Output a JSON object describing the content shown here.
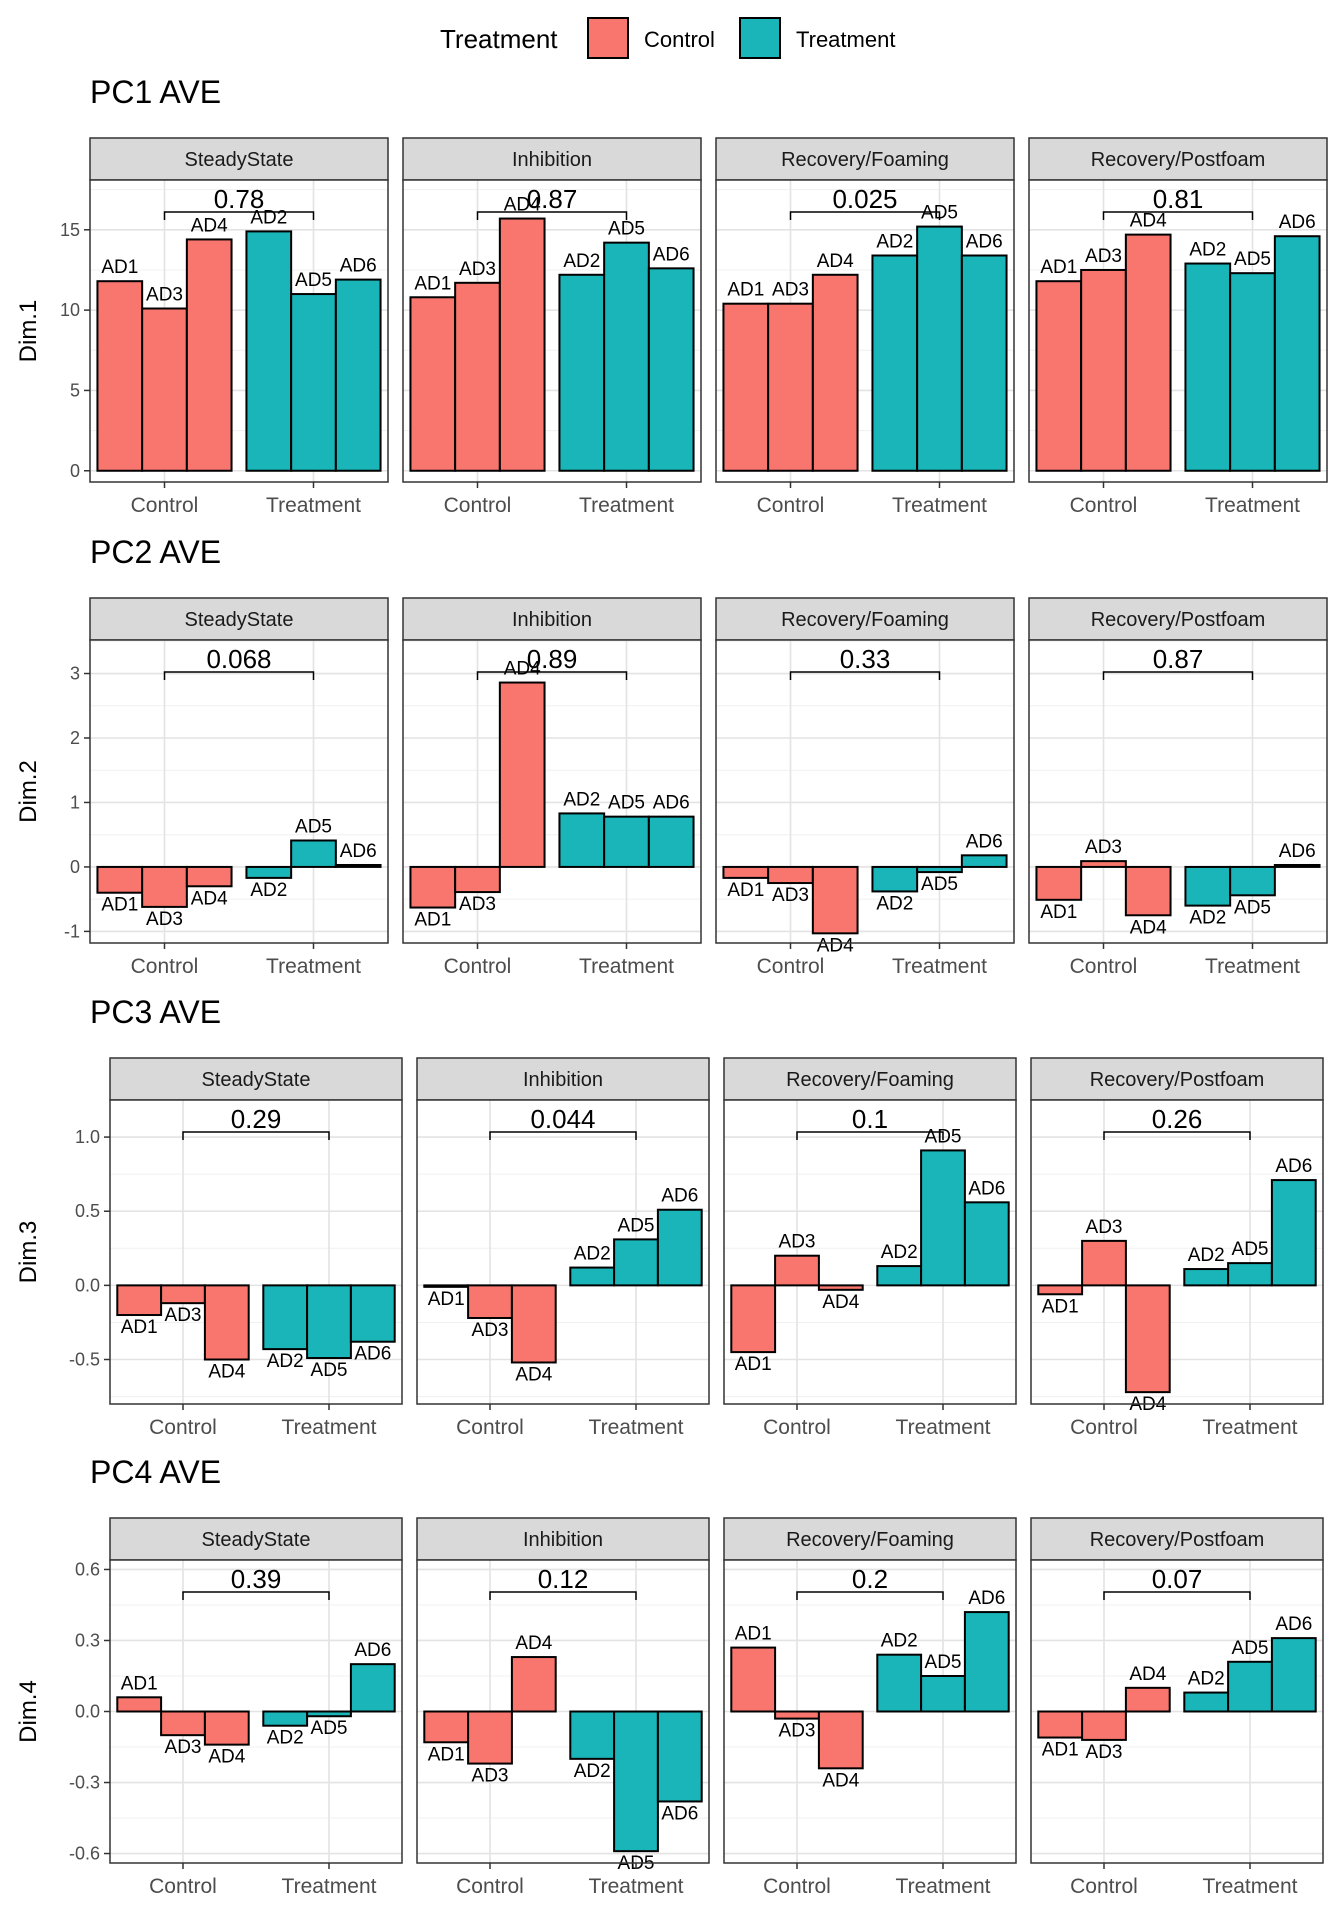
{
  "legend": {
    "title": "Treatment",
    "items": [
      {
        "label": "Control",
        "color": "#F8766D"
      },
      {
        "label": "Treatment",
        "color": "#19B5B8"
      }
    ]
  },
  "panels_header": [
    "SteadyState",
    "Inhibition",
    "Recovery/Foaming",
    "Recovery/Postfoam"
  ],
  "x_groups": [
    "Control",
    "Treatment"
  ],
  "bar_labels": [
    "AD1",
    "AD3",
    "AD4",
    "AD2",
    "AD5",
    "AD6"
  ],
  "chart_data": [
    {
      "type": "bar",
      "title": "PC1 AVE",
      "ylabel": "Dim.1",
      "yticks": [
        0,
        5,
        10,
        15
      ],
      "yticklabels": [
        "0",
        "5",
        "10",
        "15"
      ],
      "ylim": [
        -0.7,
        18.1
      ],
      "facets": [
        {
          "name": "SteadyState",
          "pvalue": "0.78",
          "values": [
            11.8,
            10.1,
            14.4,
            14.9,
            11.0,
            11.9
          ]
        },
        {
          "name": "Inhibition",
          "pvalue": "0.87",
          "values": [
            10.8,
            11.7,
            15.7,
            12.2,
            14.2,
            12.6
          ]
        },
        {
          "name": "Recovery/Foaming",
          "pvalue": "0.025",
          "values": [
            10.4,
            10.4,
            12.2,
            13.4,
            15.2,
            13.4
          ]
        },
        {
          "name": "Recovery/Postfoam",
          "pvalue": "0.81",
          "values": [
            11.8,
            12.5,
            14.7,
            12.9,
            12.3,
            14.6
          ]
        }
      ]
    },
    {
      "type": "bar",
      "title": "PC2 AVE",
      "ylabel": "Dim.2",
      "yticks": [
        -1,
        0,
        1,
        2,
        3
      ],
      "yticklabels": [
        "-1",
        "0",
        "1",
        "2",
        "3"
      ],
      "ylim": [
        -1.18,
        3.52
      ],
      "facets": [
        {
          "name": "SteadyState",
          "pvalue": "0.068",
          "values": [
            -0.4,
            -0.62,
            -0.3,
            -0.17,
            0.41,
            0.03
          ]
        },
        {
          "name": "Inhibition",
          "pvalue": "0.89",
          "values": [
            -0.63,
            -0.39,
            2.86,
            0.83,
            0.78,
            0.78
          ]
        },
        {
          "name": "Recovery/Foaming",
          "pvalue": "0.33",
          "values": [
            -0.17,
            -0.25,
            -1.03,
            -0.38,
            -0.08,
            0.18
          ]
        },
        {
          "name": "Recovery/Postfoam",
          "pvalue": "0.87",
          "values": [
            -0.51,
            0.09,
            -0.75,
            -0.6,
            -0.44,
            0.03
          ]
        }
      ]
    },
    {
      "type": "bar",
      "title": "PC3 AVE",
      "ylabel": "Dim.3",
      "yticks": [
        -0.5,
        0,
        0.5,
        1
      ],
      "yticklabels": [
        "-0.5",
        "0.0",
        "0.5",
        "1.0"
      ],
      "ylim": [
        -0.8,
        1.25
      ],
      "facets": [
        {
          "name": "SteadyState",
          "pvalue": "0.29",
          "values": [
            -0.2,
            -0.12,
            -0.5,
            -0.43,
            -0.49,
            -0.38
          ]
        },
        {
          "name": "Inhibition",
          "pvalue": "0.044",
          "values": [
            -0.01,
            -0.22,
            -0.52,
            0.12,
            0.31,
            0.51
          ]
        },
        {
          "name": "Recovery/Foaming",
          "pvalue": "0.1",
          "values": [
            -0.45,
            0.2,
            -0.03,
            0.13,
            0.91,
            0.56
          ]
        },
        {
          "name": "Recovery/Postfoam",
          "pvalue": "0.26",
          "values": [
            -0.06,
            0.3,
            -0.72,
            0.11,
            0.15,
            0.71
          ]
        }
      ]
    },
    {
      "type": "bar",
      "title": "PC4 AVE",
      "ylabel": "Dim.4",
      "yticks": [
        -0.6,
        -0.3,
        0,
        0.3,
        0.6
      ],
      "yticklabels": [
        "-0.6",
        "-0.3",
        "0.0",
        "0.3",
        "0.6"
      ],
      "ylim": [
        -0.64,
        0.64
      ],
      "facets": [
        {
          "name": "SteadyState",
          "pvalue": "0.39",
          "values": [
            0.06,
            -0.1,
            -0.14,
            -0.06,
            -0.02,
            0.2
          ]
        },
        {
          "name": "Inhibition",
          "pvalue": "0.12",
          "values": [
            -0.13,
            -0.22,
            0.23,
            -0.2,
            -0.59,
            -0.38
          ]
        },
        {
          "name": "Recovery/Foaming",
          "pvalue": "0.2",
          "values": [
            0.27,
            -0.03,
            -0.24,
            0.24,
            0.15,
            0.42
          ]
        },
        {
          "name": "Recovery/Postfoam",
          "pvalue": "0.07",
          "values": [
            -0.11,
            -0.12,
            0.1,
            0.08,
            0.21,
            0.31
          ]
        }
      ]
    }
  ]
}
